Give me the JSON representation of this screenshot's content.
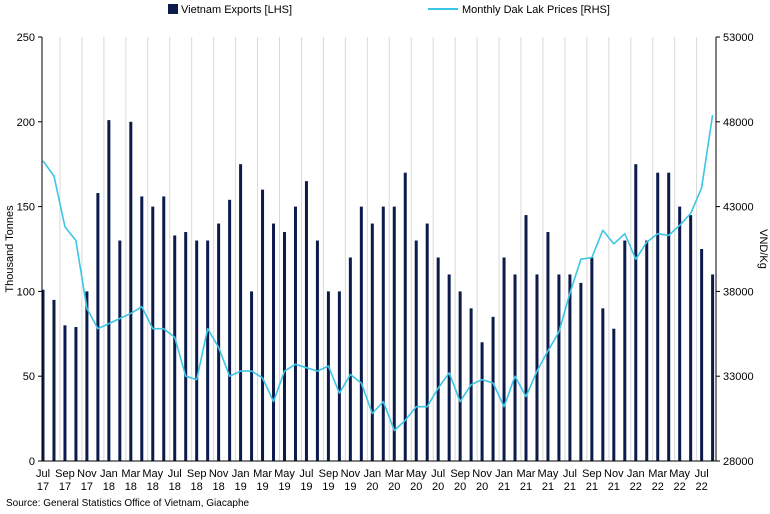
{
  "chart_data": {
    "type": "bar",
    "x_months": [
      "Jul 17",
      "Aug 17",
      "Sep 17",
      "Oct 17",
      "Nov 17",
      "Dec 17",
      "Jan 18",
      "Feb 18",
      "Mar 18",
      "Apr 18",
      "May 18",
      "Jun 18",
      "Jul 18",
      "Aug 18",
      "Sep 18",
      "Oct 18",
      "Nov 18",
      "Dec 18",
      "Jan 19",
      "Feb 19",
      "Mar 19",
      "Apr 19",
      "May 19",
      "Jun 19",
      "Jul 19",
      "Aug 19",
      "Sep 19",
      "Oct 19",
      "Nov 19",
      "Dec 19",
      "Jan 20",
      "Feb 20",
      "Mar 20",
      "Apr 20",
      "May 20",
      "Jun 20",
      "Jul 20",
      "Aug 20",
      "Sep 20",
      "Oct 20",
      "Nov 20",
      "Dec 20",
      "Jan 21",
      "Feb 21",
      "Mar 21",
      "Apr 21",
      "May 21",
      "Jun 21",
      "Jul 21",
      "Aug 21",
      "Sep 21",
      "Oct 21",
      "Nov 21",
      "Dec 21",
      "Jan 22",
      "Feb 22",
      "Mar 22",
      "Apr 22",
      "May 22",
      "Jun 22",
      "Jul 22",
      "Aug 22"
    ],
    "tick_labels": [
      {
        "month": "Jul",
        "year": "17"
      },
      {
        "month": "Sep",
        "year": "17"
      },
      {
        "month": "Nov",
        "year": "17"
      },
      {
        "month": "Jan",
        "year": "18"
      },
      {
        "month": "Mar",
        "year": "18"
      },
      {
        "month": "May",
        "year": "18"
      },
      {
        "month": "Jul",
        "year": "18"
      },
      {
        "month": "Sep",
        "year": "18"
      },
      {
        "month": "Nov",
        "year": "18"
      },
      {
        "month": "Jan",
        "year": "19"
      },
      {
        "month": "Mar",
        "year": "19"
      },
      {
        "month": "May",
        "year": "19"
      },
      {
        "month": "Jul",
        "year": "19"
      },
      {
        "month": "Sep",
        "year": "19"
      },
      {
        "month": "Nov",
        "year": "19"
      },
      {
        "month": "Jan",
        "year": "20"
      },
      {
        "month": "Mar",
        "year": "20"
      },
      {
        "month": "May",
        "year": "20"
      },
      {
        "month": "Jul",
        "year": "20"
      },
      {
        "month": "Sep",
        "year": "20"
      },
      {
        "month": "Nov",
        "year": "20"
      },
      {
        "month": "Jan",
        "year": "21"
      },
      {
        "month": "Mar",
        "year": "21"
      },
      {
        "month": "May",
        "year": "21"
      },
      {
        "month": "Jul",
        "year": "21"
      },
      {
        "month": "Sep",
        "year": "21"
      },
      {
        "month": "Nov",
        "year": "21"
      },
      {
        "month": "Jan",
        "year": "22"
      },
      {
        "month": "Mar",
        "year": "22"
      },
      {
        "month": "May",
        "year": "22"
      },
      {
        "month": "Jul",
        "year": "22"
      }
    ],
    "series": [
      {
        "name": "Vietnam Exports [LHS]",
        "type": "bar",
        "axis": "left",
        "color": "#0d1b4b",
        "values": [
          101,
          95,
          80,
          79,
          100,
          158,
          201,
          130,
          200,
          156,
          150,
          156,
          133,
          135,
          130,
          130,
          140,
          154,
          175,
          100,
          160,
          140,
          135,
          150,
          165,
          130,
          100,
          100,
          120,
          150,
          140,
          150,
          150,
          170,
          130,
          140,
          120,
          110,
          100,
          90,
          70,
          85,
          120,
          110,
          145,
          110,
          135,
          110,
          110,
          105,
          120,
          90,
          78,
          130,
          175,
          130,
          170,
          170,
          150,
          145,
          125,
          110
        ]
      },
      {
        "name": "Monthly Dak Lak Prices [RHS]",
        "type": "line",
        "axis": "right",
        "color": "#3cc6e6",
        "values": [
          45700,
          44800,
          41800,
          41000,
          37000,
          35800,
          36100,
          36400,
          36700,
          37100,
          35800,
          35800,
          35300,
          33000,
          32800,
          35800,
          34700,
          33000,
          33300,
          33300,
          32900,
          31500,
          33300,
          33700,
          33500,
          33300,
          33600,
          32000,
          33100,
          32600,
          30800,
          31500,
          29800,
          30400,
          31200,
          31200,
          32300,
          33200,
          31500,
          32500,
          32800,
          32600,
          31200,
          33000,
          31800,
          33300,
          34500,
          35600,
          37900,
          39900,
          40000,
          41600,
          40800,
          41400,
          39900,
          40900,
          41400,
          41300,
          41900,
          42600,
          44100,
          48400
        ]
      }
    ],
    "y_left": {
      "label": "Thousand Tonnes",
      "min": 0,
      "max": 250,
      "ticks": [
        0,
        50,
        100,
        150,
        200,
        250
      ]
    },
    "y_right": {
      "label": "VND/Kg",
      "min": 28000,
      "max": 53000,
      "ticks": [
        28000,
        33000,
        38000,
        43000,
        48000,
        53000
      ]
    },
    "grid": "vertical",
    "legend": "top",
    "source": "Source: General Statistics Office of Vietnam, Giacaphe"
  }
}
